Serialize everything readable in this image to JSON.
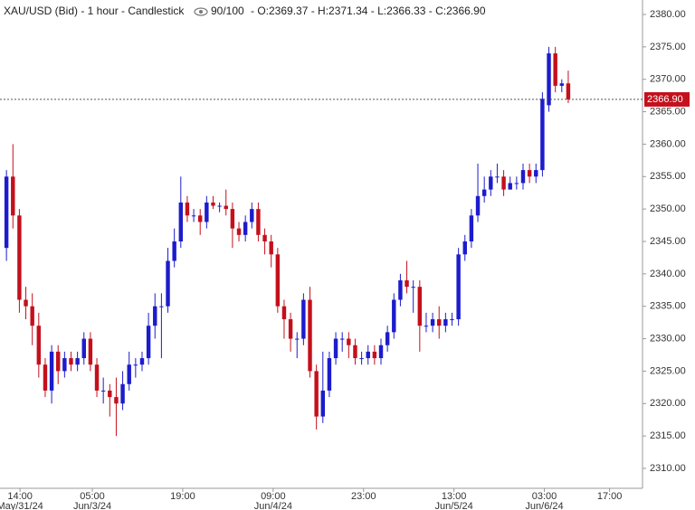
{
  "chart_data": {
    "type": "candlestick",
    "title": "XAU/USD (Bid) - 1 hour - Candlestick",
    "counter": "90/100",
    "quote": "- O:2369.37 - H:2371.34 - L:2366.33 - C:2366.90",
    "up_color": "#1c1ccc",
    "down_color": "#c4101c",
    "last_price": {
      "value": 2366.9,
      "label": "2366.90"
    },
    "xlim": [
      -1,
      98.5
    ],
    "ylim": [
      2306.93,
      2382.23
    ],
    "yticks": [
      {
        "value": 2310,
        "label": "2310.00"
      },
      {
        "value": 2315,
        "label": "2315.00"
      },
      {
        "value": 2320,
        "label": "2320.00"
      },
      {
        "value": 2325,
        "label": "2325.00"
      },
      {
        "value": 2330,
        "label": "2330.00"
      },
      {
        "value": 2335,
        "label": "2335.00"
      },
      {
        "value": 2340,
        "label": "2340.00"
      },
      {
        "value": 2345,
        "label": "2345.00"
      },
      {
        "value": 2350,
        "label": "2350.00"
      },
      {
        "value": 2355,
        "label": "2355.00"
      },
      {
        "value": 2360,
        "label": "2360.00"
      },
      {
        "value": 2365,
        "label": "2365.00"
      },
      {
        "value": 2370,
        "label": "2370.00"
      },
      {
        "value": 2375,
        "label": "2375.00"
      },
      {
        "value": 2380,
        "label": "2380.00"
      }
    ],
    "xticks": [
      {
        "value": 2.1,
        "label": "14:00",
        "date": "May/31/24"
      },
      {
        "value": 13.3,
        "label": "05:00",
        "date": "Jun/3/24"
      },
      {
        "value": 27.3,
        "label": "19:00"
      },
      {
        "value": 41.3,
        "label": "09:00",
        "date": "Jun/4/24"
      },
      {
        "value": 55.3,
        "label": "23:00"
      },
      {
        "value": 69.3,
        "label": "13:00",
        "date": "Jun/5/24"
      },
      {
        "value": 83.3,
        "label": "03:00",
        "date": "Jun/6/24"
      },
      {
        "value": 93.4,
        "label": "17:00"
      }
    ],
    "open": [
      2344,
      2355,
      2349,
      2336,
      2335,
      2332,
      2326,
      2322,
      2328,
      2325,
      2327,
      2326,
      2327,
      2330,
      2326,
      2322,
      2322,
      2321,
      2320,
      2323,
      2326,
      2326,
      2327,
      2332,
      2335,
      2335,
      2342,
      2345,
      2351,
      2349,
      2349,
      2348,
      2351,
      2350.5,
      2350.5,
      2350,
      2347,
      2346,
      2348,
      2350,
      2346,
      2345,
      2343,
      2335,
      2333,
      2330,
      2330,
      2336,
      2325,
      2318,
      2322,
      2327,
      2330,
      2330,
      2329,
      2327,
      2327,
      2328,
      2327,
      2329,
      2331,
      2336,
      2339,
      2338,
      2338,
      2332,
      2332,
      2333,
      2332,
      2333,
      2333,
      2343,
      2345,
      2349,
      2352,
      2353,
      2355,
      2355,
      2353,
      2354,
      2354,
      2356,
      2355,
      2356,
      2366,
      2374,
      2369,
      2369.37
    ],
    "high": [
      2356,
      2360,
      2350,
      2338,
      2337,
      2334,
      2327,
      2329,
      2329,
      2328,
      2328,
      2328,
      2331,
      2331,
      2327,
      2324,
      2323,
      2324,
      2325,
      2328,
      2327,
      2328,
      2334,
      2337,
      2337,
      2344,
      2347,
      2355,
      2352,
      2350,
      2350,
      2352,
      2352,
      2351,
      2353,
      2351,
      2348,
      2349,
      2351,
      2351,
      2347,
      2346,
      2344,
      2336,
      2334,
      2331,
      2337,
      2338,
      2326,
      2328,
      2328,
      2331,
      2331,
      2331,
      2330,
      2328,
      2329,
      2329,
      2330,
      2332,
      2337,
      2340,
      2342,
      2339,
      2339,
      2334,
      2334,
      2335,
      2334,
      2334,
      2344,
      2346,
      2350,
      2357,
      2355,
      2356,
      2357,
      2356,
      2355,
      2355,
      2357,
      2357,
      2357,
      2368,
      2375,
      2375,
      2370,
      2371.34
    ],
    "low": [
      2342,
      2347,
      2334,
      2333,
      2329,
      2324,
      2321,
      2320,
      2323,
      2324,
      2325,
      2325,
      2326,
      2325,
      2321,
      2320,
      2318,
      2315,
      2319,
      2322,
      2324,
      2325,
      2326,
      2330,
      2327,
      2334,
      2341,
      2344,
      2348,
      2348,
      2346,
      2347,
      2350,
      2349.5,
      2349,
      2344,
      2345,
      2345,
      2347,
      2345,
      2343,
      2341,
      2334,
      2330,
      2328,
      2327,
      2329,
      2324,
      2316,
      2317,
      2321,
      2326,
      2328,
      2327,
      2326,
      2326,
      2326,
      2326,
      2326,
      2328,
      2330,
      2335,
      2337,
      2334,
      2328,
      2331,
      2331,
      2330,
      2331,
      2332,
      2332,
      2342,
      2344,
      2348,
      2351,
      2352,
      2354,
      2352,
      2353,
      2353,
      2353,
      2354,
      2354,
      2355,
      2365,
      2368,
      2368,
      2366.33
    ],
    "close": [
      2355,
      2349,
      2336,
      2335,
      2332,
      2326,
      2322,
      2328,
      2325,
      2327,
      2326,
      2327,
      2330,
      2326,
      2322,
      2322,
      2321,
      2320,
      2323,
      2326,
      2326,
      2327,
      2332,
      2335,
      2335,
      2342,
      2345,
      2351,
      2349,
      2349,
      2348,
      2351,
      2350.5,
      2350.5,
      2350,
      2347,
      2346,
      2348,
      2350,
      2346,
      2345,
      2343,
      2335,
      2333,
      2330,
      2330,
      2336,
      2325,
      2318,
      2322,
      2327,
      2330,
      2330,
      2329,
      2327,
      2327,
      2328,
      2327,
      2329,
      2331,
      2336,
      2339,
      2338,
      2338,
      2332,
      2332,
      2333,
      2332,
      2333,
      2333,
      2343,
      2345,
      2349,
      2352,
      2353,
      2355,
      2355,
      2353,
      2354,
      2354,
      2356,
      2355,
      2356,
      2367,
      2374,
      2369,
      2369.37,
      2366.9
    ]
  }
}
